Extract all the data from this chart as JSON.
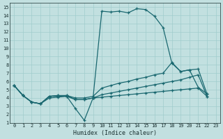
{
  "bg_color": "#c2e0e0",
  "grid_color": "#a0cccc",
  "line_color": "#1a6870",
  "xlabel": "Humidex (Indice chaleur)",
  "xlim": [
    -0.5,
    23.5
  ],
  "ylim": [
    1,
    15.5
  ],
  "xticks": [
    0,
    1,
    2,
    3,
    4,
    5,
    6,
    7,
    8,
    9,
    10,
    11,
    12,
    13,
    14,
    15,
    16,
    17,
    18,
    19,
    20,
    21,
    22,
    23
  ],
  "yticks": [
    1,
    2,
    3,
    4,
    5,
    6,
    7,
    8,
    9,
    10,
    11,
    12,
    13,
    14,
    15
  ],
  "line1_x": [
    0,
    1,
    2,
    3,
    4,
    5,
    6,
    7,
    8,
    9,
    10,
    11,
    12,
    13,
    14,
    15,
    16,
    17,
    18,
    19,
    20,
    21,
    22
  ],
  "line1_y": [
    5.5,
    4.3,
    3.5,
    3.3,
    4.2,
    4.3,
    4.2,
    2.7,
    1.3,
    4.0,
    14.5,
    14.4,
    14.5,
    14.3,
    14.8,
    14.7,
    13.9,
    12.5,
    8.2,
    7.2,
    7.4,
    5.3,
    4.5
  ],
  "line2_x": [
    0,
    1,
    2,
    3,
    4,
    5,
    6,
    7,
    8,
    9,
    10,
    11,
    12,
    13,
    14,
    15,
    16,
    17,
    18,
    19,
    20,
    21,
    22
  ],
  "line2_y": [
    5.5,
    4.3,
    3.5,
    3.3,
    4.2,
    4.3,
    4.3,
    4.0,
    4.0,
    4.2,
    5.2,
    5.5,
    5.8,
    6.0,
    6.3,
    6.5,
    6.8,
    7.0,
    8.3,
    7.2,
    7.4,
    7.5,
    4.5
  ],
  "line3_x": [
    0,
    1,
    2,
    3,
    4,
    5,
    6,
    7,
    8,
    9,
    10,
    11,
    12,
    13,
    14,
    15,
    16,
    17,
    18,
    19,
    20,
    21,
    22
  ],
  "line3_y": [
    5.5,
    4.3,
    3.5,
    3.3,
    4.2,
    4.2,
    4.3,
    3.8,
    3.8,
    4.0,
    4.4,
    4.6,
    4.8,
    5.0,
    5.2,
    5.4,
    5.6,
    5.8,
    6.0,
    6.2,
    6.5,
    6.8,
    4.2
  ],
  "line4_x": [
    0,
    1,
    2,
    3,
    4,
    5,
    6,
    7,
    8,
    9,
    10,
    11,
    12,
    13,
    14,
    15,
    16,
    17,
    18,
    19,
    20,
    21,
    22
  ],
  "line4_y": [
    5.5,
    4.3,
    3.5,
    3.3,
    4.0,
    4.1,
    4.2,
    3.8,
    3.8,
    4.0,
    4.1,
    4.2,
    4.3,
    4.4,
    4.5,
    4.6,
    4.7,
    4.8,
    4.9,
    5.0,
    5.1,
    5.2,
    4.2
  ]
}
